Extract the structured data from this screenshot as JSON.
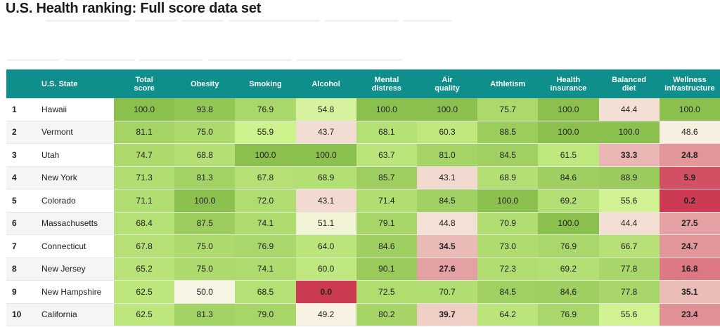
{
  "page": {
    "title": "U.S. Health ranking: Full score data set"
  },
  "table": {
    "columns": [
      {
        "key": "rank",
        "label": ""
      },
      {
        "key": "state",
        "label": "U.S. State"
      },
      {
        "key": "total",
        "label": "Total\nscore"
      },
      {
        "key": "obesity",
        "label": "Obesity"
      },
      {
        "key": "smoking",
        "label": "Smoking"
      },
      {
        "key": "alcohol",
        "label": "Alcohol"
      },
      {
        "key": "mental",
        "label": "Mental\ndistress"
      },
      {
        "key": "air",
        "label": "Air\nquality"
      },
      {
        "key": "athletism",
        "label": "Athletism"
      },
      {
        "key": "insurance",
        "label": "Health\ninsurance"
      },
      {
        "key": "diet",
        "label": "Balanced\ndiet"
      },
      {
        "key": "wellness",
        "label": "Wellness\ninfrastructure"
      }
    ],
    "rows": [
      {
        "rank": "1",
        "state": "Hawaii",
        "scores": [
          "100.0",
          "93.8",
          "76.9",
          "54.8",
          "100.0",
          "100.0",
          "75.7",
          "100.0",
          "44.4",
          "100.0"
        ]
      },
      {
        "rank": "2",
        "state": "Vermont",
        "scores": [
          "81.1",
          "75.0",
          "55.9",
          "43.7",
          "68.1",
          "60.3",
          "88.5",
          "100.0",
          "100.0",
          "48.6"
        ]
      },
      {
        "rank": "3",
        "state": "Utah",
        "scores": [
          "74.7",
          "68.8",
          "100.0",
          "100.0",
          "63.7",
          "81.0",
          "84.5",
          "61.5",
          "33.3",
          "24.8"
        ]
      },
      {
        "rank": "4",
        "state": "New York",
        "scores": [
          "71.3",
          "81.3",
          "67.8",
          "68.9",
          "85.7",
          "43.1",
          "68.9",
          "84.6",
          "88.9",
          "5.9"
        ]
      },
      {
        "rank": "5",
        "state": "Colorado",
        "scores": [
          "71.1",
          "100.0",
          "72.0",
          "43.1",
          "71.4",
          "84.5",
          "100.0",
          "69.2",
          "55.6",
          "0.2"
        ]
      },
      {
        "rank": "6",
        "state": "Massachusetts",
        "scores": [
          "68.4",
          "87.5",
          "74.1",
          "51.1",
          "79.1",
          "44.8",
          "70.9",
          "100.0",
          "44.4",
          "27.5"
        ]
      },
      {
        "rank": "7",
        "state": "Connecticut",
        "scores": [
          "67.8",
          "75.0",
          "76.9",
          "64.0",
          "84.6",
          "34.5",
          "73.0",
          "76.9",
          "66.7",
          "24.7"
        ]
      },
      {
        "rank": "8",
        "state": "New Jersey",
        "scores": [
          "65.2",
          "75.0",
          "74.1",
          "60.0",
          "90.1",
          "27.6",
          "72.3",
          "69.2",
          "77.8",
          "16.8"
        ]
      },
      {
        "rank": "9",
        "state": "New Hampshire",
        "scores": [
          "62.5",
          "50.0",
          "68.5",
          "0.0",
          "72.5",
          "70.7",
          "84.5",
          "84.6",
          "77.8",
          "35.1"
        ]
      },
      {
        "rank": "10",
        "state": "California",
        "scores": [
          "62.5",
          "81.3",
          "79.0",
          "49.2",
          "80.2",
          "39.7",
          "64.2",
          "76.9",
          "55.6",
          "23.4"
        ]
      }
    ]
  },
  "colors": {
    "header_bg": "#0f8f8b",
    "scale_low": "#cc3a52",
    "scale_mid": "#f8f4e4",
    "scale_high": "#8cc04e"
  }
}
